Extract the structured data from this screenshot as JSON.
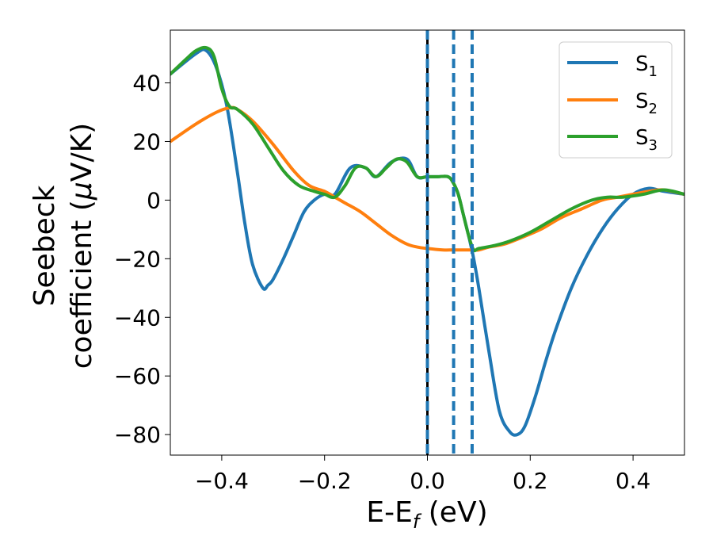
{
  "chart_data": {
    "type": "line",
    "title": "",
    "xlabel": {
      "main": "E-E",
      "sub": "f",
      "tail": " (eV)"
    },
    "ylabel": {
      "line1": "Seebeck",
      "line2_pre": "coefficient  (",
      "line2_mu": "μ",
      "line2_post": "V/K)"
    },
    "xlim": [
      -0.5,
      0.5
    ],
    "ylim": [
      -87,
      58
    ],
    "xticks": [
      -0.4,
      -0.2,
      0.0,
      0.2,
      0.4
    ],
    "xtick_labels": [
      "−0.4",
      "−0.2",
      "0.0",
      "0.2",
      "0.4"
    ],
    "yticks": [
      -80,
      -60,
      -40,
      -20,
      0,
      20,
      40
    ],
    "ytick_labels": [
      "−80",
      "−60",
      "−40",
      "−20",
      "0",
      "20",
      "40"
    ],
    "grid": false,
    "legend_position": "top-right",
    "vlines": [
      {
        "x": 0.0,
        "style": "solid",
        "color": "#000000"
      },
      {
        "x": 0.0,
        "style": "dashed",
        "color": "#1f77b4"
      },
      {
        "x": 0.051,
        "style": "dashed",
        "color": "#1f77b4"
      },
      {
        "x": 0.087,
        "style": "dashed",
        "color": "#1f77b4"
      }
    ],
    "series": [
      {
        "name": "S",
        "sub": "1",
        "color": "#1f77b4",
        "x": [
          -0.5,
          -0.45,
          -0.43,
          -0.41,
          -0.39,
          -0.37,
          -0.355,
          -0.34,
          -0.32,
          -0.31,
          -0.3,
          -0.28,
          -0.26,
          -0.24,
          -0.22,
          -0.2,
          -0.18,
          -0.15,
          -0.12,
          -0.1,
          -0.07,
          -0.04,
          -0.02,
          0.0,
          0.02,
          0.04,
          0.05,
          0.06,
          0.07,
          0.08,
          0.09,
          0.1,
          0.12,
          0.14,
          0.16,
          0.175,
          0.19,
          0.21,
          0.23,
          0.25,
          0.28,
          0.31,
          0.34,
          0.37,
          0.4,
          0.43,
          0.46,
          0.5
        ],
        "y": [
          43,
          50,
          51,
          45,
          32,
          10,
          -8,
          -22,
          -30,
          -29,
          -27,
          -20,
          -12,
          -4,
          0,
          2,
          2,
          11,
          11,
          8,
          13,
          14,
          8,
          8,
          8,
          8,
          6,
          2,
          -5,
          -12,
          -20,
          -30,
          -52,
          -72,
          -79,
          -80,
          -77,
          -67,
          -55,
          -44,
          -30,
          -19,
          -10,
          -3,
          2,
          4,
          3,
          2
        ]
      },
      {
        "name": "S",
        "sub": "2",
        "color": "#ff7f0e",
        "x": [
          -0.5,
          -0.45,
          -0.41,
          -0.385,
          -0.37,
          -0.34,
          -0.3,
          -0.26,
          -0.23,
          -0.2,
          -0.18,
          -0.16,
          -0.13,
          -0.1,
          -0.07,
          -0.04,
          -0.02,
          0.0,
          0.03,
          0.05,
          0.07,
          0.087,
          0.1,
          0.12,
          0.15,
          0.18,
          0.22,
          0.26,
          0.3,
          0.34,
          0.37,
          0.4,
          0.43,
          0.46,
          0.5
        ],
        "y": [
          20,
          26,
          30,
          31.5,
          31,
          27,
          19,
          10,
          5,
          3,
          1,
          -1,
          -4,
          -8,
          -12,
          -15,
          -16,
          -16.5,
          -17,
          -17,
          -17,
          -17,
          -17,
          -16,
          -15,
          -13,
          -10,
          -6,
          -3,
          0,
          1,
          2,
          3,
          3.5,
          2
        ]
      },
      {
        "name": "S",
        "sub": "3",
        "color": "#2ca02c",
        "x": [
          -0.5,
          -0.47,
          -0.45,
          -0.43,
          -0.415,
          -0.4,
          -0.385,
          -0.37,
          -0.34,
          -0.31,
          -0.28,
          -0.25,
          -0.22,
          -0.2,
          -0.18,
          -0.16,
          -0.14,
          -0.12,
          -0.1,
          -0.08,
          -0.06,
          -0.04,
          -0.02,
          0.0,
          0.02,
          0.04,
          0.05,
          0.06,
          0.07,
          0.08,
          0.09,
          0.1,
          0.13,
          0.16,
          0.2,
          0.24,
          0.28,
          0.32,
          0.35,
          0.38,
          0.42,
          0.46,
          0.5
        ],
        "y": [
          43,
          48,
          51,
          52,
          49,
          38,
          32,
          31,
          26,
          18,
          10,
          5,
          3,
          2,
          1,
          5,
          11,
          11,
          8,
          11,
          14,
          13,
          8,
          8,
          8,
          8,
          6,
          2,
          -5,
          -12,
          -17,
          -16.5,
          -15.5,
          -14,
          -11,
          -7,
          -3,
          0,
          1,
          1,
          2,
          3.5,
          2
        ]
      }
    ]
  }
}
